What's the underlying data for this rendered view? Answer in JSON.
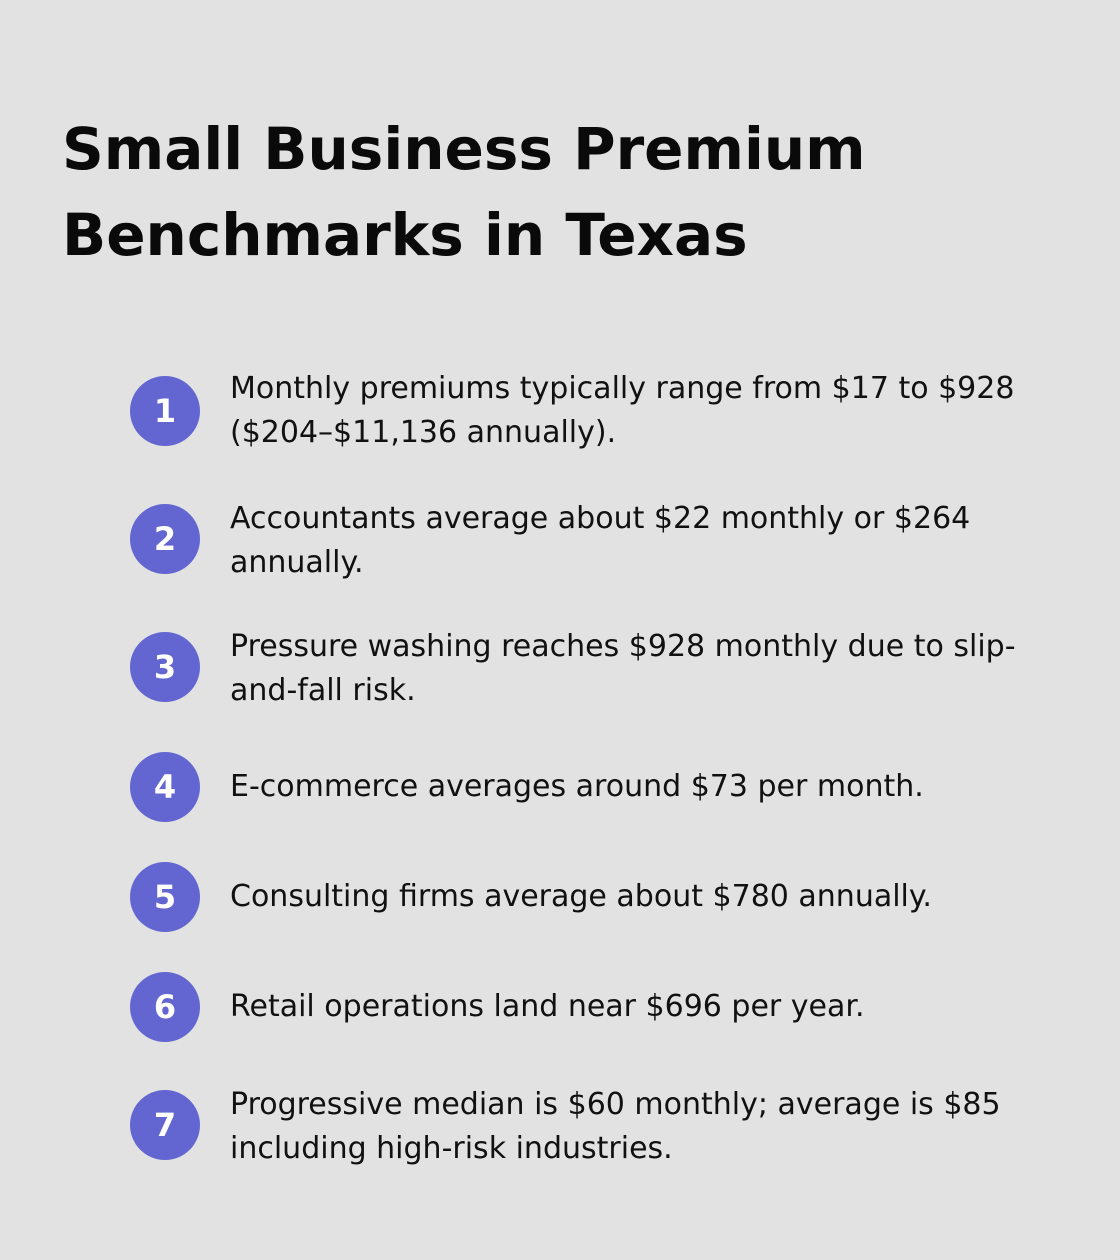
{
  "title": "Small Business Premium Benchmarks in Texas",
  "colors": {
    "background": "#e1e2e1",
    "badge": "#6366d1",
    "badge_text": "#ffffff",
    "text": "#111111"
  },
  "items": [
    {
      "number": "1",
      "text": "Monthly premiums typically range from $17 to $928 ($204–$11,136 annually)."
    },
    {
      "number": "2",
      "text": "Accountants average about $22 monthly or $264 annually."
    },
    {
      "number": "3",
      "text": "Pressure washing reaches $928 monthly due to slip-and-fall risk."
    },
    {
      "number": "4",
      "text": "E-commerce averages around $73 per month."
    },
    {
      "number": "5",
      "text": "Consulting firms average about $780 annually."
    },
    {
      "number": "6",
      "text": "Retail operations land near $696 per year."
    },
    {
      "number": "7",
      "text": "Progressive median is $60 monthly; average is $85 including high-risk industries."
    }
  ]
}
